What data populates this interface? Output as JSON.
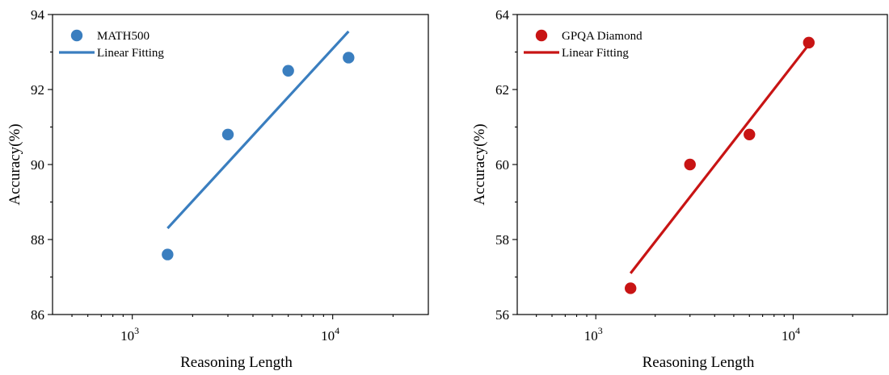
{
  "chart_data": [
    {
      "type": "scatter",
      "series": [
        {
          "name": "MATH500",
          "x": [
            1500,
            3000,
            6000,
            12000
          ],
          "y": [
            87.6,
            90.8,
            92.5,
            92.85
          ],
          "color": "#3a7ebf"
        },
        {
          "name": "Linear Fitting",
          "kind": "line",
          "x": [
            1500,
            12000
          ],
          "y": [
            88.3,
            93.55
          ],
          "color": "#3a7ebf"
        }
      ],
      "xlabel": "Reasoning Length",
      "ylabel": "Accuracy(%)",
      "xscale": "log",
      "xlim": [
        400,
        30000
      ],
      "ylim": [
        86,
        94
      ],
      "yticks": [
        "86",
        "88",
        "90",
        "92",
        "94"
      ],
      "xticks": [
        {
          "value": 1000,
          "base": "10",
          "exp": "3"
        },
        {
          "value": 10000,
          "base": "10",
          "exp": "4"
        }
      ],
      "legend": "top-left",
      "grid": false
    },
    {
      "type": "scatter",
      "series": [
        {
          "name": "GPQA Diamond",
          "x": [
            1500,
            3000,
            6000,
            12000
          ],
          "y": [
            56.7,
            60.0,
            60.8,
            63.25
          ],
          "color": "#c81414"
        },
        {
          "name": "Linear Fitting",
          "kind": "line",
          "x": [
            1500,
            12000
          ],
          "y": [
            57.1,
            63.2
          ],
          "color": "#c81414"
        }
      ],
      "xlabel": "Reasoning Length",
      "ylabel": "Accuracy(%)",
      "xscale": "log",
      "xlim": [
        400,
        30000
      ],
      "ylim": [
        56,
        64
      ],
      "yticks": [
        "56",
        "58",
        "60",
        "62",
        "64"
      ],
      "xticks": [
        {
          "value": 1000,
          "base": "10",
          "exp": "3"
        },
        {
          "value": 10000,
          "base": "10",
          "exp": "4"
        }
      ],
      "legend": "top-left",
      "grid": false
    }
  ]
}
